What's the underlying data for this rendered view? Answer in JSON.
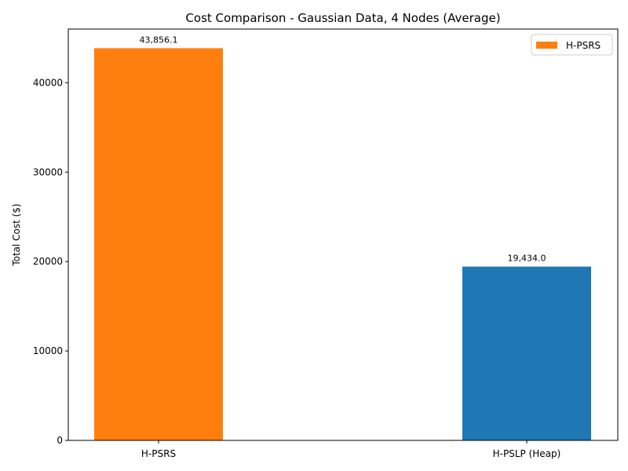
{
  "chart_data": {
    "type": "bar",
    "title": "Cost Comparison - Gaussian Data, 4 Nodes (Average)",
    "xlabel": "",
    "ylabel": "Total Cost ($)",
    "categories": [
      "H-PSRS",
      "H-PSLP (Heap)"
    ],
    "values": [
      43856.1,
      19434.0
    ],
    "data_labels": [
      "43,856.1",
      "19,434.0"
    ],
    "bar_colors": [
      "#ff7f0e",
      "#1f77b4"
    ],
    "ylim": [
      0,
      46000
    ],
    "yticks": [
      0,
      10000,
      20000,
      30000,
      40000
    ],
    "ytick_labels": [
      "0",
      "10000",
      "20000",
      "30000",
      "40000"
    ],
    "legend": {
      "placement": "top-right",
      "entries": [
        {
          "label": "H-PSRS",
          "color": "#ff7f0e"
        }
      ]
    },
    "grid": false
  }
}
